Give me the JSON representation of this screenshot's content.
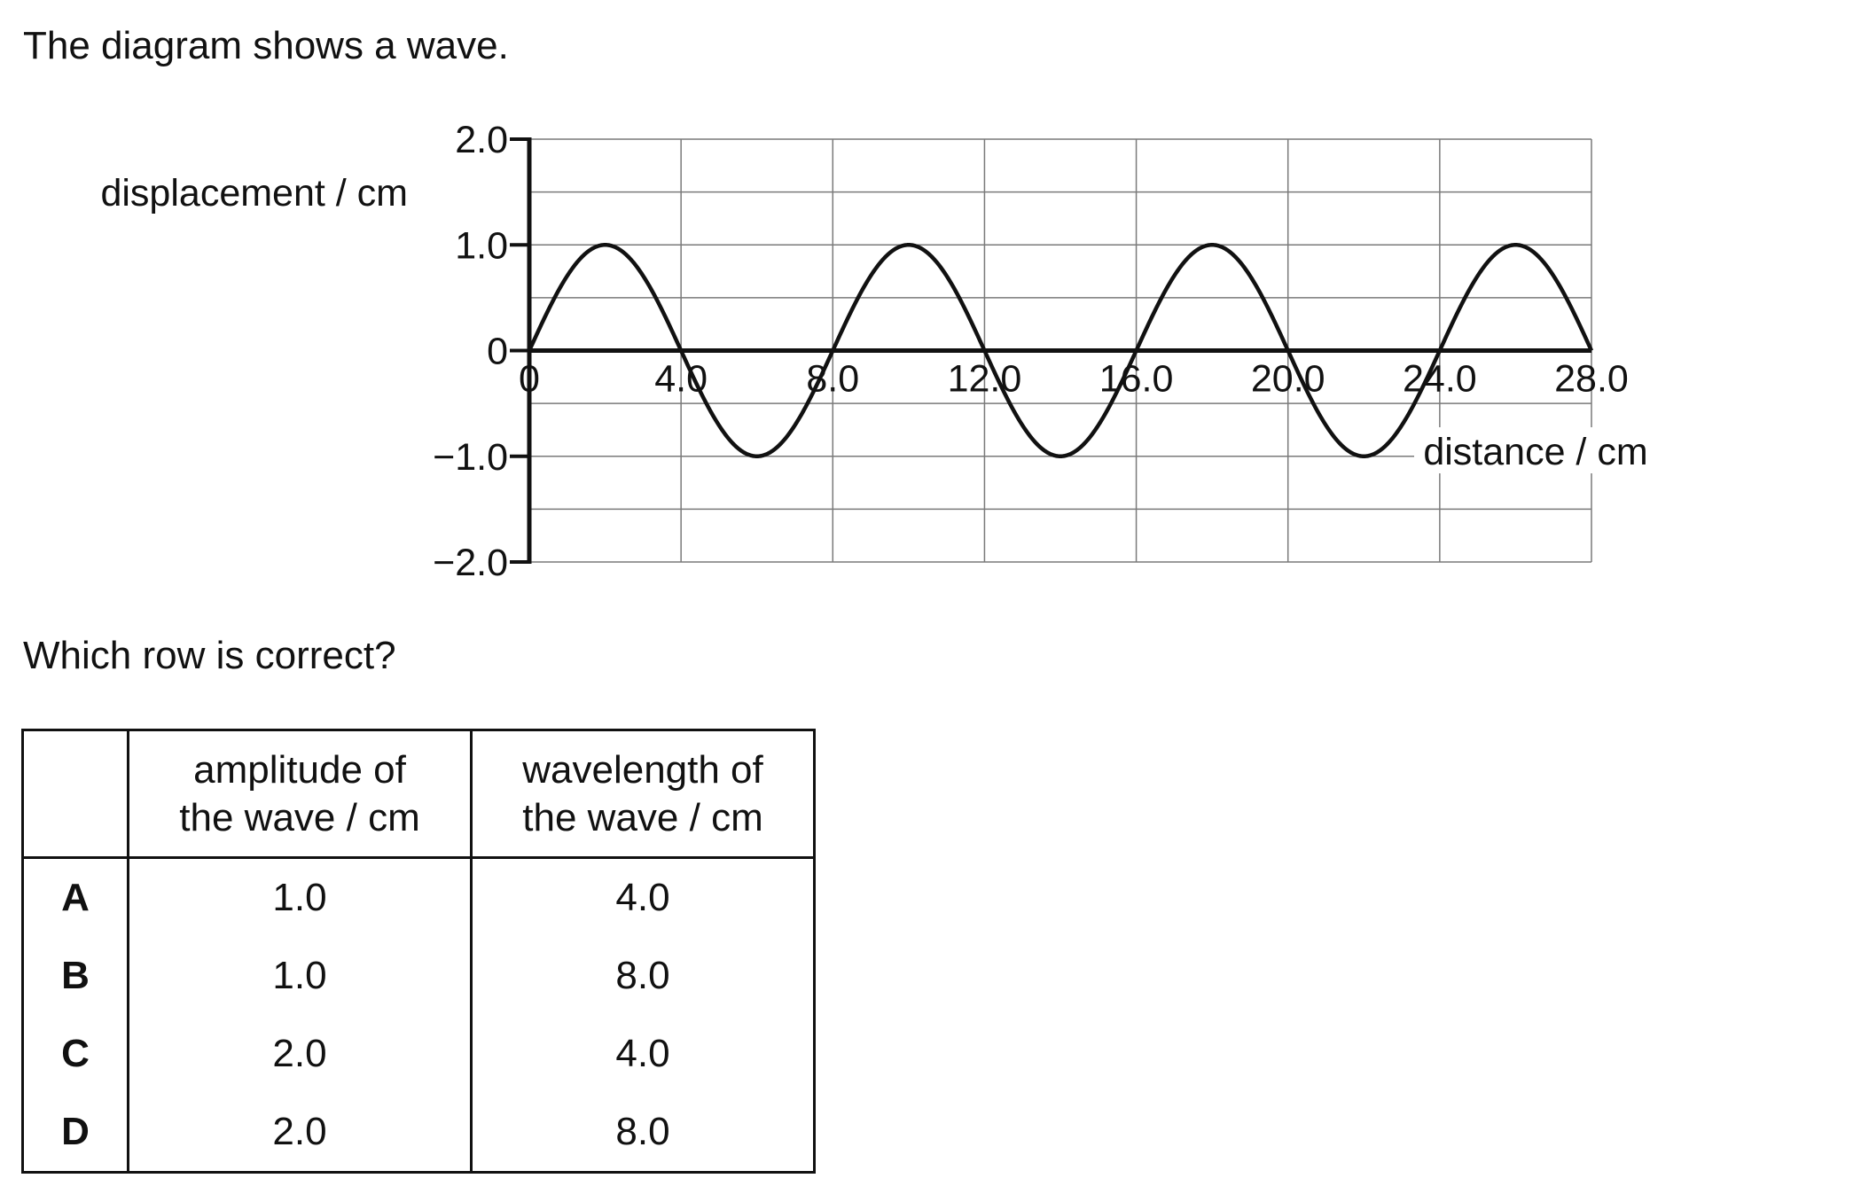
{
  "intro": "The diagram shows a wave.",
  "question": "Which row is correct?",
  "chart_data": {
    "type": "line",
    "ylabel": "displacement / cm",
    "xlabel": "distance / cm",
    "xlim": [
      0,
      28.0
    ],
    "ylim": [
      -2.0,
      2.0
    ],
    "x_ticks": [
      "0",
      "4.0",
      "8.0",
      "12.0",
      "16.0",
      "20.0",
      "24.0",
      "28.0"
    ],
    "y_ticks": [
      "2.0",
      "1.0",
      "0",
      "−1.0",
      "−2.0"
    ],
    "grid": true,
    "series": [
      {
        "function": "sine",
        "amplitude": 1.0,
        "wavelength": 8.0,
        "x": [
          0,
          2.0,
          4.0,
          6.0,
          8.0,
          10.0,
          12.0,
          14.0,
          16.0,
          18.0,
          20.0,
          22.0,
          24.0,
          26.0,
          28.0
        ],
        "y": [
          0,
          1.0,
          0,
          -1.0,
          0,
          1.0,
          0,
          -1.0,
          0,
          1.0,
          0,
          -1.0,
          0,
          1.0,
          0
        ]
      }
    ]
  },
  "table": {
    "headers": {
      "key": "",
      "amplitude": [
        "amplitude of",
        "the wave / cm"
      ],
      "wavelength": [
        "wavelength of",
        "the wave / cm"
      ]
    },
    "rows": [
      {
        "key": "A",
        "amplitude": "1.0",
        "wavelength": "4.0"
      },
      {
        "key": "B",
        "amplitude": "1.0",
        "wavelength": "8.0"
      },
      {
        "key": "C",
        "amplitude": "2.0",
        "wavelength": "4.0"
      },
      {
        "key": "D",
        "amplitude": "2.0",
        "wavelength": "8.0"
      }
    ]
  }
}
